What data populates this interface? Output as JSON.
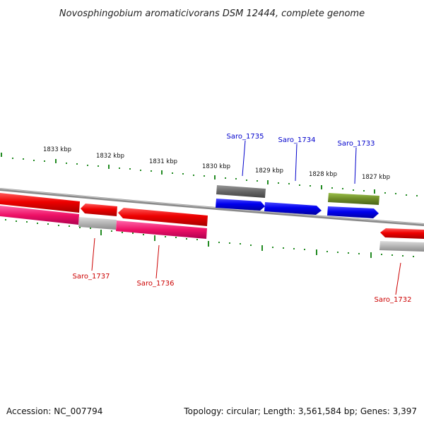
{
  "title": "Novosphingobium aromaticivorans DSM 12444, complete genome",
  "footer": {
    "accession": "Accession: NC_007794",
    "summary": "Topology: circular; Length: 3,561,584 bp; Genes: 3,397"
  },
  "colors": {
    "forward_strand": "#0000ee",
    "reverse_strand": "#ee0000",
    "cds_reverse": "#ee1166",
    "pseudo_gray": "#666666",
    "light_gray": "#b4b4b4",
    "olive": "#6e8c28",
    "tick_green": "#228b22",
    "backbone": "#8a8a8a"
  },
  "ticks": [
    "1833 kbp",
    "1832 kbp",
    "1831 kbp",
    "1830 kbp",
    "1829 kbp",
    "1828 kbp",
    "1827 kbp"
  ],
  "genes": {
    "saro_1735": "Saro_1735",
    "saro_1734": "Saro_1734",
    "saro_1733": "Saro_1733",
    "saro_1737": "Saro_1737",
    "saro_1736": "Saro_1736",
    "saro_1732": "Saro_1732"
  }
}
